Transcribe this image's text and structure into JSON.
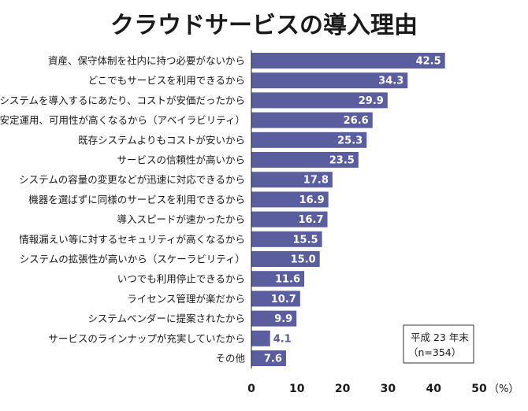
{
  "chart_data": {
    "type": "bar",
    "orientation": "horizontal",
    "title": "クラウドサービスの導入理由",
    "categories": [
      "資産、保守体制を社内に持つ必要がないから",
      "どこでもサービスを利用できるから",
      "新システムを導入するにあたり、コストが安価だったから",
      "安定運用、可用性が高くなるから（アベイラビリティ）",
      "既存システムよりもコストが安いから",
      "サービスの信頼性が高いから",
      "システムの容量の変更などが迅速に対応できるから",
      "機器を選ばずに同様のサービスを利用できるから",
      "導入スピードが速かったから",
      "情報漏えい等に対するセキュリティが高くなるから",
      "システムの拡張性が高いから（スケーラビリティ）",
      "いつでも利用停止できるから",
      "ライセンス管理が楽だから",
      "システムベンダーに提案されたから",
      "サービスのラインナップが充実していたから",
      "その他"
    ],
    "values": [
      42.5,
      34.3,
      29.9,
      26.6,
      25.3,
      23.5,
      17.8,
      16.9,
      16.7,
      15.5,
      15.0,
      11.6,
      10.7,
      9.9,
      4.1,
      7.6
    ],
    "value_labels": [
      "42.5",
      "34.3",
      "29.9",
      "26.6",
      "25.3",
      "23.5",
      "17.8",
      "16.9",
      "16.7",
      "15.5",
      "15.0",
      "11.6",
      "10.7",
      "9.9",
      "4.1",
      "7.6"
    ],
    "xlim": [
      0,
      50
    ],
    "xticks": [
      0,
      10,
      20,
      30,
      40,
      50
    ],
    "xtick_labels": [
      "0",
      "10",
      "20",
      "30",
      "40",
      "50"
    ],
    "x_unit": "（%）",
    "note_lines": [
      "平成 23 年末",
      "（n=354）"
    ],
    "bar_color": "#5b5e9e",
    "grid": false
  }
}
